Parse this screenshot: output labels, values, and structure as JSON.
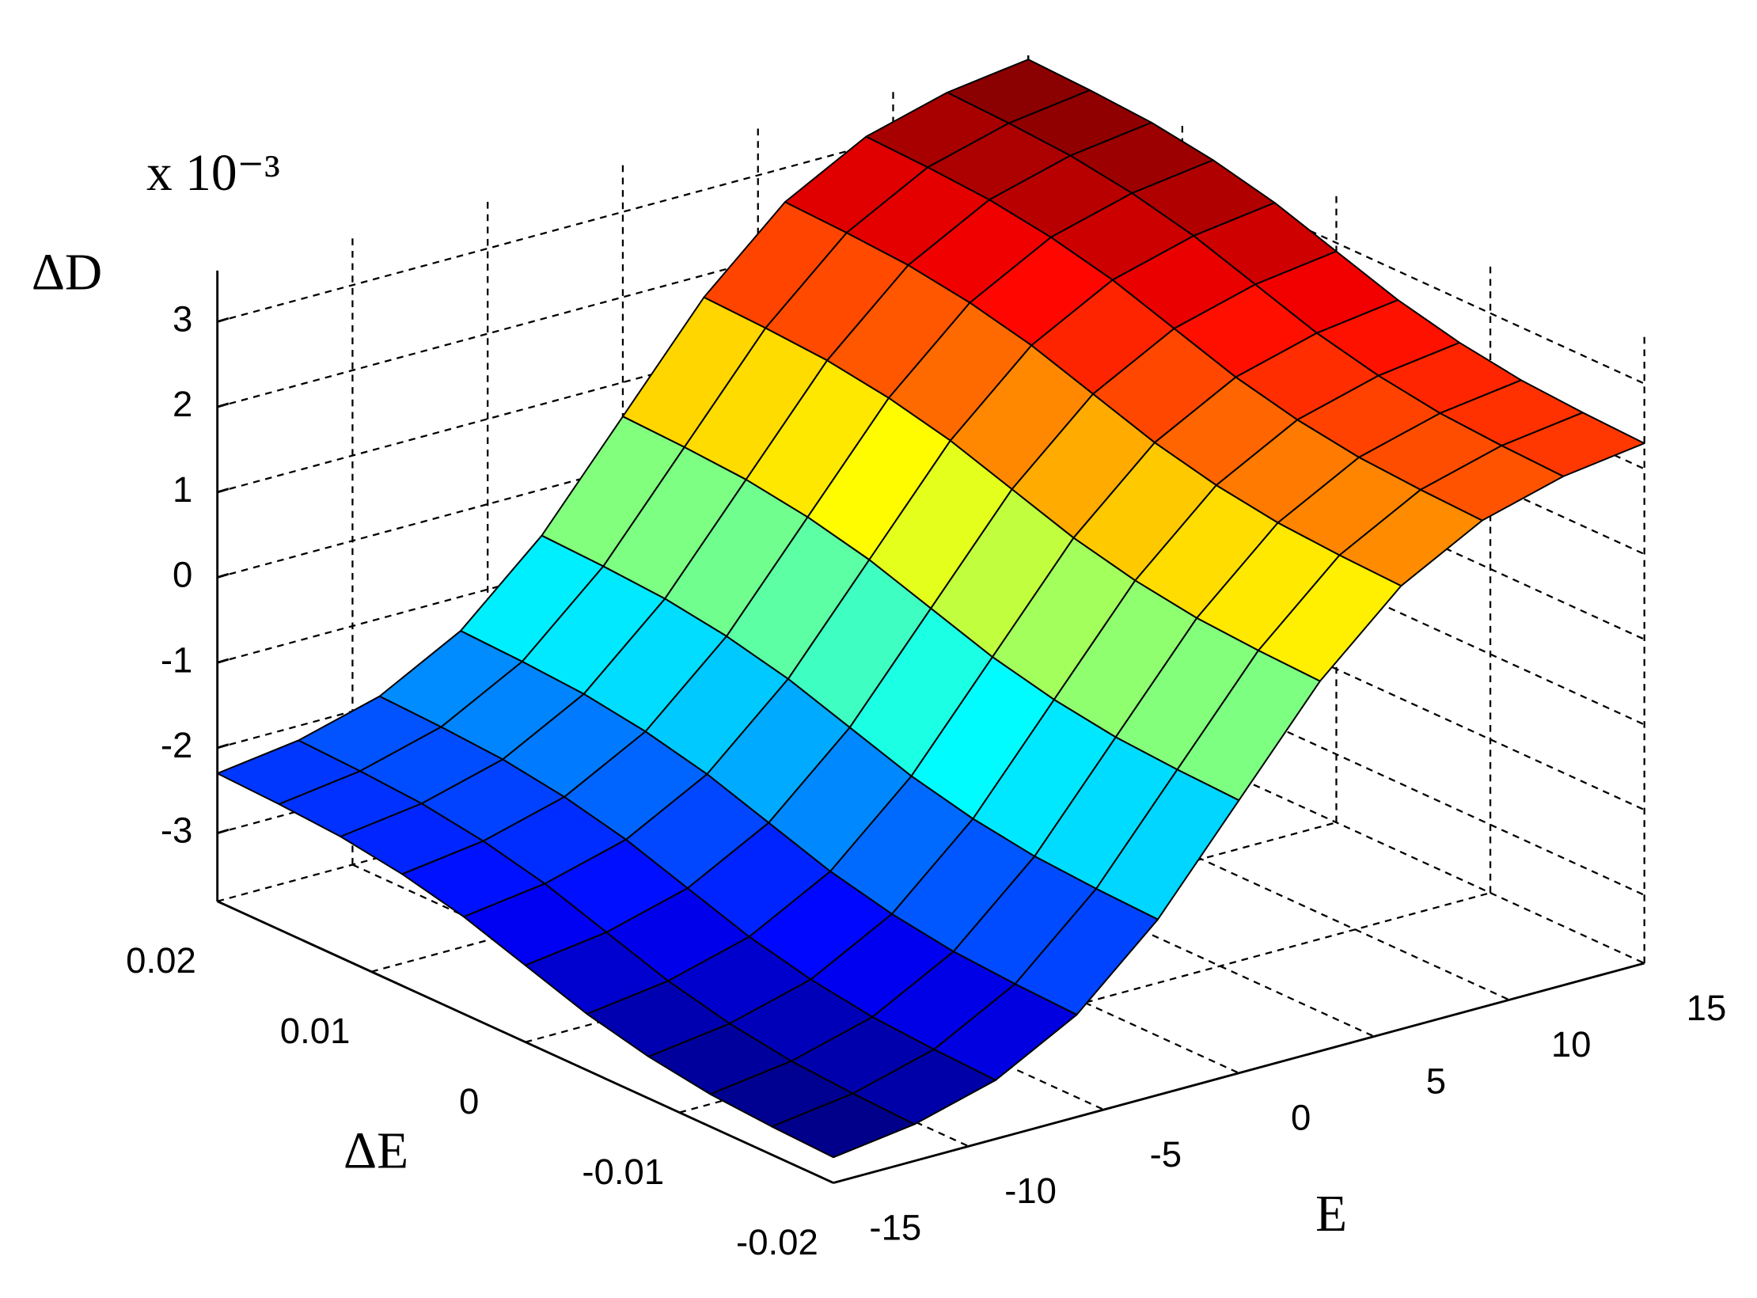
{
  "chart_data": {
    "type": "surface",
    "xlabel": "E",
    "ylabel": "ΔE",
    "zlabel": "ΔD",
    "z_multiplier": "x 10⁻³",
    "colormap": "jet",
    "grid": true,
    "x": [
      -15,
      -12,
      -9,
      -6,
      -3,
      0,
      3,
      6,
      9,
      12,
      15
    ],
    "y": [
      -0.02,
      -0.016,
      -0.012,
      -0.008,
      -0.004,
      0,
      0.004,
      0.008,
      0.012,
      0.016,
      0.02
    ],
    "z": [
      [
        -3.5,
        -3.37,
        -3.11,
        -2.6,
        -1.74,
        -0.6,
        0.54,
        1.4,
        1.91,
        2.17,
        2.3
      ],
      [
        -3.47,
        -3.34,
        -3.08,
        -2.57,
        -1.71,
        -0.57,
        0.57,
        1.43,
        1.94,
        2.2,
        2.33
      ],
      [
        -3.42,
        -3.29,
        -3.03,
        -2.52,
        -1.66,
        -0.52,
        0.62,
        1.48,
        1.99,
        2.25,
        2.38
      ],
      [
        -3.31,
        -3.18,
        -2.92,
        -2.41,
        -1.55,
        -0.41,
        0.73,
        1.59,
        2.1,
        2.36,
        2.49
      ],
      [
        -3.14,
        -3.01,
        -2.75,
        -2.24,
        -1.38,
        -0.24,
        0.9,
        1.76,
        2.27,
        2.53,
        2.66
      ],
      [
        -2.9,
        -2.77,
        -2.51,
        -2.0,
        -1.14,
        0,
        1.14,
        2.0,
        2.51,
        2.77,
        2.9
      ],
      [
        -2.66,
        -2.53,
        -2.27,
        -1.76,
        -0.9,
        0.24,
        1.38,
        2.24,
        2.75,
        3.01,
        3.14
      ],
      [
        -2.49,
        -2.36,
        -2.1,
        -1.59,
        -0.73,
        0.41,
        1.55,
        2.41,
        2.92,
        3.18,
        3.31
      ],
      [
        -2.38,
        -2.25,
        -1.99,
        -1.48,
        -0.62,
        0.52,
        1.66,
        2.52,
        3.03,
        3.29,
        3.42
      ],
      [
        -2.33,
        -2.2,
        -1.94,
        -1.43,
        -0.57,
        0.57,
        1.71,
        2.57,
        3.08,
        3.34,
        3.47
      ],
      [
        -2.3,
        -2.17,
        -1.91,
        -1.4,
        -0.54,
        0.6,
        1.74,
        2.6,
        3.11,
        3.37,
        3.5
      ]
    ],
    "xlim": [
      -15,
      15
    ],
    "ylim": [
      -0.02,
      0.02
    ],
    "zlim": [
      -3.8,
      3.6
    ],
    "xticks": [
      -15,
      -10,
      -5,
      0,
      5,
      10,
      15
    ],
    "yticks": [
      -0.02,
      -0.01,
      0,
      0.01,
      0.02
    ],
    "zticks": [
      -3,
      -2,
      -1,
      0,
      1,
      2,
      3
    ]
  }
}
